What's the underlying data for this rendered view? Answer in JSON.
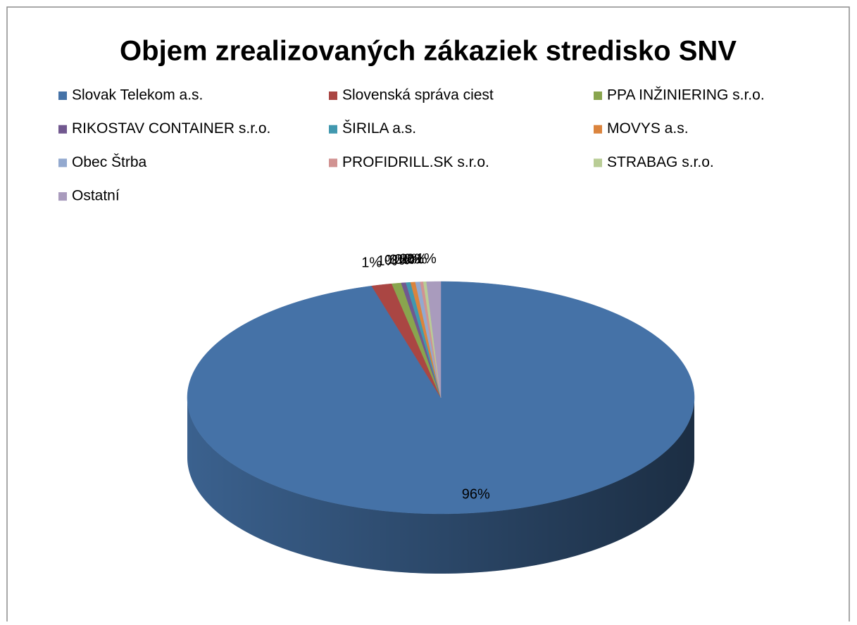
{
  "chart_data": {
    "type": "pie3d",
    "title": "Objem zrealizovaných zákaziek stredisko SNV",
    "categories": [
      "Slovak Telekom a.s.",
      "Slovenská správa ciest",
      "PPA INŽINIERING s.r.o.",
      "RIKOSTAV CONTAINER s.r.o.",
      "ŠIRILA a.s.",
      "MOVYS a.s.",
      "Obec Štrba",
      "PROFIDRILL.SK s.r.o.",
      "STRABAG s.r.o.",
      "Ostatní"
    ],
    "values": [
      95.6,
      1.3,
      0.6,
      0.3,
      0.3,
      0.3,
      0.3,
      0.2,
      0.2,
      0.9
    ],
    "value_labels": [
      "96%",
      "1%",
      "1%",
      "0%",
      "0%",
      "0%",
      "0%",
      "0%",
      "0%",
      "1%"
    ],
    "colors": [
      "#4572a7",
      "#aa4643",
      "#89a54e",
      "#71588f",
      "#4198af",
      "#db843d",
      "#93a9cf",
      "#d19392",
      "#b9cd96",
      "#a99bbd"
    ],
    "legend": "top"
  }
}
